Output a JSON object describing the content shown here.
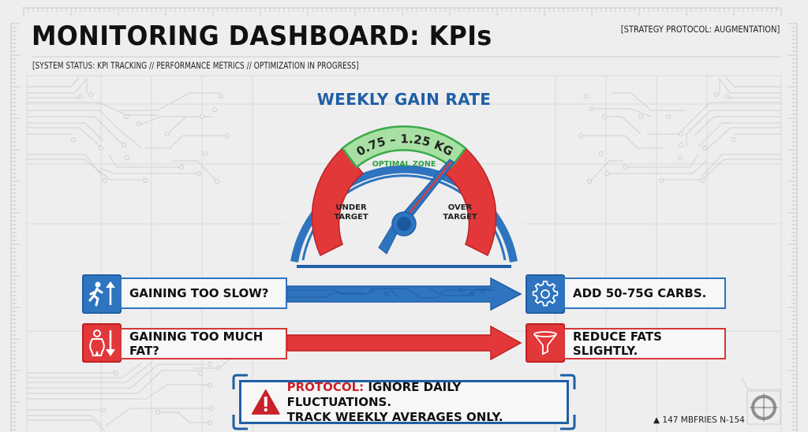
{
  "header": {
    "title": "MONITORING DASHBOARD: KPIs",
    "subtitle": "[SYSTEM STATUS: KPI TRACKING // PERFORMANCE METRICS // OPTIMIZATION IN PROGRESS]",
    "protocol_tag": "[STRATEGY PROTOCOL: AUGMENTATION]"
  },
  "gauge": {
    "title": "WEEKLY GAIN RATE",
    "optimal_range": "0.75 – 1.25 KG",
    "optimal_label": "OPTIMAL ZONE",
    "under_label_1": "UNDER",
    "under_label_2": "TARGET",
    "over_label_1": "OVER",
    "over_label_2": "TARGET",
    "needle_position": "upper edge of optimal zone",
    "colors": {
      "ring": "#2e74bf",
      "zone_red": "#e2383a",
      "zone_green": "#9fdc9c",
      "green_text": "#2ea043"
    }
  },
  "rules": [
    {
      "condition": "GAINING TOO SLOW?",
      "condition_icon": "running-person-up-arrow-icon",
      "action": "ADD 50-75G CARBS.",
      "action_icon": "gear-icon",
      "color": "#2e74bf"
    },
    {
      "condition": "GAINING TOO MUCH FAT?",
      "condition_icon": "overweight-person-down-arrow-icon",
      "action": "REDUCE FATS SLIGHTLY.",
      "action_icon": "funnel-icon",
      "color": "#e2383a"
    }
  ],
  "callout": {
    "icon": "warning-triangle-icon",
    "prefix": "PROTOCOL:",
    "line1": " IGNORE DAILY FLUCTUATIONS.",
    "line2": "TRACK WEEKLY AVERAGES ONLY."
  },
  "footer": {
    "code": "▲ 147 MBFRIES N-154",
    "icon": "crosshair-icon"
  }
}
